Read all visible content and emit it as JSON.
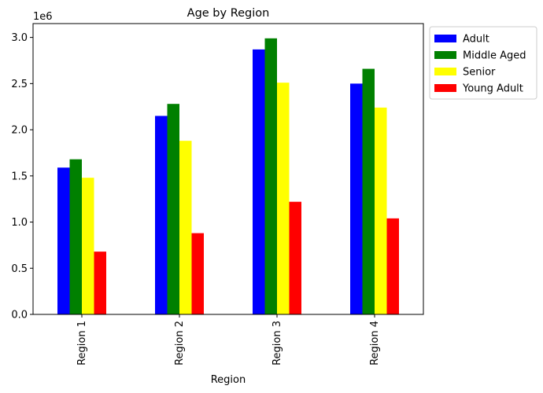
{
  "chart_data": {
    "type": "bar",
    "title": "Age by Region",
    "xlabel": "Region",
    "ylabel": "",
    "y_offset_label": "1e6",
    "categories": [
      "Region 1",
      "Region 2",
      "Region 3",
      "Region 4"
    ],
    "series": [
      {
        "name": "Adult",
        "color": "#0000ff",
        "values": [
          1590000,
          2150000,
          2870000,
          2500000
        ]
      },
      {
        "name": "Middle Aged",
        "color": "#008000",
        "values": [
          1680000,
          2280000,
          2990000,
          2660000
        ]
      },
      {
        "name": "Senior",
        "color": "#ffff00",
        "values": [
          1480000,
          1880000,
          2510000,
          2240000
        ]
      },
      {
        "name": "Young Adult",
        "color": "#ff0000",
        "values": [
          680000,
          880000,
          1220000,
          1040000
        ]
      }
    ],
    "ylim": [
      0,
      3150000
    ],
    "y_ticks": [
      0,
      0.5,
      1.0,
      1.5,
      2.0,
      2.5,
      3.0
    ],
    "y_tick_labels": [
      "0.0",
      "0.5",
      "1.0",
      "1.5",
      "2.0",
      "2.5",
      "3.0"
    ],
    "grid": false,
    "legend_position": "outside top-right"
  }
}
